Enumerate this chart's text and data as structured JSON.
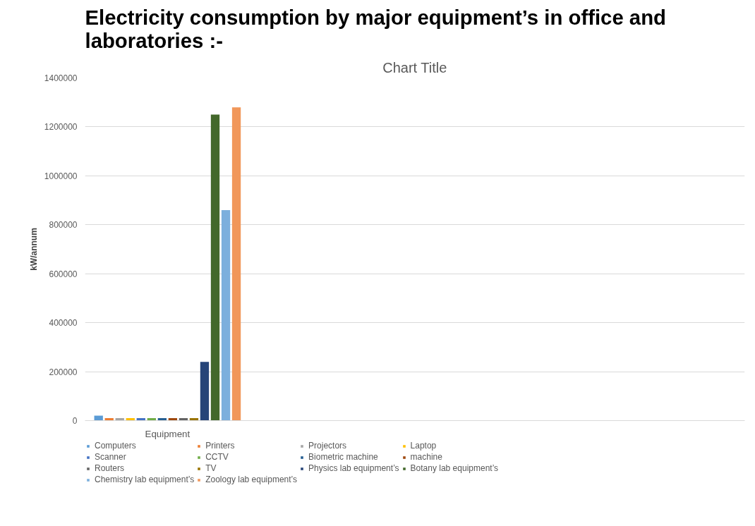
{
  "chart_data": {
    "type": "bar",
    "title": "Electricity consumption by major equipment’s in office and laboratories :-",
    "subtitle": "Chart Title",
    "ylabel": "kW/annum",
    "categories": [
      "Equipment",
      null,
      null,
      null
    ],
    "ylim": [
      0,
      1400000
    ],
    "yticks": [
      0,
      200000,
      400000,
      600000,
      800000,
      1000000,
      1200000,
      1400000
    ],
    "grid": "y",
    "legend": "bottom",
    "series": [
      {
        "name": "Computers",
        "color": "#5b9bd5",
        "values": [
          20000,
          null,
          null,
          null
        ]
      },
      {
        "name": "Printers",
        "color": "#ed7d31",
        "values": [
          10000,
          null,
          null,
          null
        ]
      },
      {
        "name": "Projectors",
        "color": "#a5a5a5",
        "values": [
          10000,
          null,
          null,
          null
        ]
      },
      {
        "name": "Laptop",
        "color": "#ffc000",
        "values": [
          10000,
          null,
          null,
          null
        ]
      },
      {
        "name": "Scanner",
        "color": "#4472c4",
        "values": [
          10000,
          null,
          null,
          null
        ]
      },
      {
        "name": "CCTV",
        "color": "#70ad47",
        "values": [
          10000,
          null,
          null,
          null
        ]
      },
      {
        "name": "Biometric machine",
        "color": "#255e91",
        "values": [
          10000,
          null,
          null,
          null
        ]
      },
      {
        "name": "machine",
        "color": "#9e480e",
        "values": [
          10000,
          null,
          null,
          null
        ]
      },
      {
        "name": "Routers",
        "color": "#636363",
        "values": [
          10000,
          null,
          null,
          null
        ]
      },
      {
        "name": "TV",
        "color": "#997300",
        "values": [
          10000,
          null,
          null,
          null
        ]
      },
      {
        "name": "Physics lab equipment’s",
        "color": "#264478",
        "values": [
          240000,
          null,
          null,
          null
        ]
      },
      {
        "name": "Botany lab equipment’s",
        "color": "#43682b",
        "values": [
          1250000,
          null,
          null,
          null
        ]
      },
      {
        "name": "Chemistry lab equipment’s",
        "color": "#7cafdd",
        "values": [
          860000,
          null,
          null,
          null
        ]
      },
      {
        "name": "Zoology lab equipment’s",
        "color": "#f1975a",
        "values": [
          1280000,
          null,
          null,
          null
        ]
      }
    ]
  }
}
